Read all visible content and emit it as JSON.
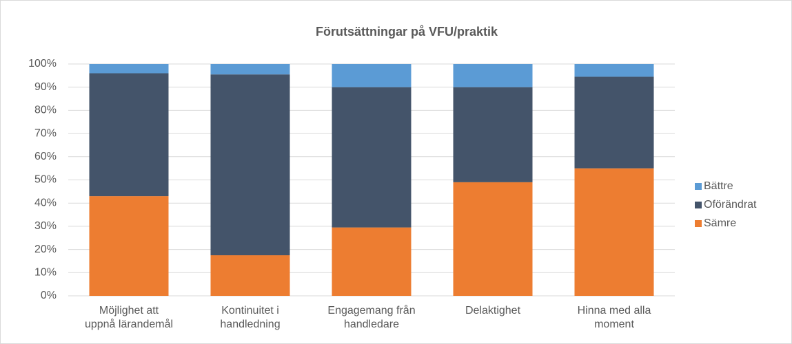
{
  "chart_data": {
    "type": "stacked_bar",
    "title": "Förutsättningar på VFU/praktik",
    "categories": [
      "Möjlighet att\nuppnå lärandemål",
      "Kontinuitet i\nhandledning",
      "Engagemang från\nhandledare",
      "Delaktighet",
      "Hinna med alla\nmoment"
    ],
    "series": [
      {
        "name": "Sämre",
        "color": "#ed7d31",
        "values": [
          43,
          17.5,
          29.5,
          49,
          55
        ]
      },
      {
        "name": "Oförändrat",
        "color": "#44546a",
        "values": [
          53,
          78,
          60.5,
          41,
          39.5
        ]
      },
      {
        "name": "Bättre",
        "color": "#5b9bd5",
        "values": [
          4,
          4.5,
          10,
          10,
          5.5
        ]
      }
    ],
    "ylim": [
      0,
      100
    ],
    "yticks": [
      {
        "value": 0,
        "label": "0%"
      },
      {
        "value": 10,
        "label": "10%"
      },
      {
        "value": 20,
        "label": "20%"
      },
      {
        "value": 30,
        "label": "30%"
      },
      {
        "value": 40,
        "label": "40%"
      },
      {
        "value": 50,
        "label": "50%"
      },
      {
        "value": 60,
        "label": "60%"
      },
      {
        "value": 70,
        "label": "70%"
      },
      {
        "value": 80,
        "label": "80%"
      },
      {
        "value": 90,
        "label": "90%"
      },
      {
        "value": 100,
        "label": "100%"
      }
    ],
    "grid": true,
    "legend": "right"
  }
}
